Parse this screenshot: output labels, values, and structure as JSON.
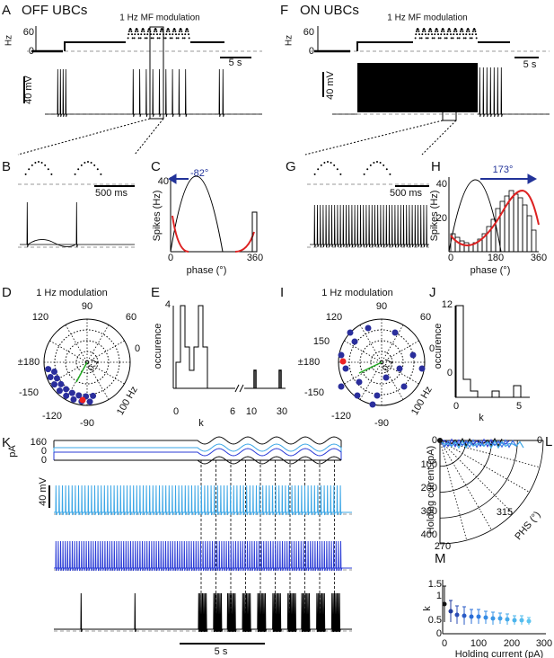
{
  "A": {
    "label": "A",
    "title": "OFF UBCs",
    "hz": "Hz",
    "hz_ticks": [
      "60",
      "0"
    ],
    "stim": "1 Hz MF modulation",
    "time_scale": "5 s",
    "v_scale": "40 mV"
  },
  "F": {
    "label": "F",
    "title": "ON UBCs",
    "hz": "Hz",
    "hz_ticks": [
      "60",
      "0"
    ],
    "stim": "1 Hz MF modulation",
    "time_scale": "5 s",
    "v_scale": "40 mV"
  },
  "B": {
    "label": "B",
    "time_scale": "500 ms"
  },
  "C": {
    "label": "C",
    "angle": "-82°",
    "ylabel": "Spikes (Hz)",
    "yticks": [
      "40"
    ],
    "xticks": [
      "0",
      "360"
    ],
    "xlabel": "phase (°)"
  },
  "G": {
    "label": "G",
    "time_scale": "500 ms"
  },
  "H": {
    "label": "H",
    "angle": "173°",
    "ylabel": "Spikes (Hz)",
    "yticks": [
      "40",
      "20"
    ],
    "xticks": [
      "0",
      "180",
      "360"
    ],
    "xlabel": "phase (°)"
  },
  "D": {
    "label": "D",
    "title": "1 Hz modulation",
    "angles": [
      "90",
      "120",
      "60",
      "±180",
      "0",
      "-150",
      "-120",
      "-90"
    ],
    "radius": "0.1",
    "rate": "100 Hz"
  },
  "E": {
    "label": "E",
    "ylabel": "occurence",
    "yticks": [
      "4"
    ],
    "xticks": [
      "0",
      "6",
      "10",
      "30"
    ],
    "xlabel": "k"
  },
  "I": {
    "label": "I",
    "title": "1 Hz modulation",
    "angles": [
      "90",
      "120",
      "60",
      "150",
      "±180",
      "0",
      "-150",
      "-120",
      "-90"
    ],
    "radius": "0.1",
    "rate": "100 Hz"
  },
  "J": {
    "label": "J",
    "ylabel": "occurence",
    "yticks": [
      "12",
      "0"
    ],
    "xticks": [
      "0",
      "5"
    ],
    "xlabel": "k"
  },
  "K": {
    "label": "K",
    "pa": "pA",
    "pa_ticks": [
      "160",
      "0",
      "0"
    ],
    "v_scale": "40 mV",
    "time_scale": "5 s"
  },
  "L": {
    "label": "L",
    "ylabel": "Holding current (pA)",
    "yticks": [
      "0",
      "100",
      "200",
      "300",
      "400"
    ],
    "angles": [
      "0",
      "315",
      "270"
    ],
    "alabel": "PHS (°)"
  },
  "M": {
    "label": "M",
    "ylabel": "k",
    "yticks": [
      "1.5",
      "1",
      "0.5",
      "0"
    ],
    "xticks": [
      "0",
      "100",
      "200",
      "300"
    ],
    "xlabel": "Holding current (pA)"
  }
}
